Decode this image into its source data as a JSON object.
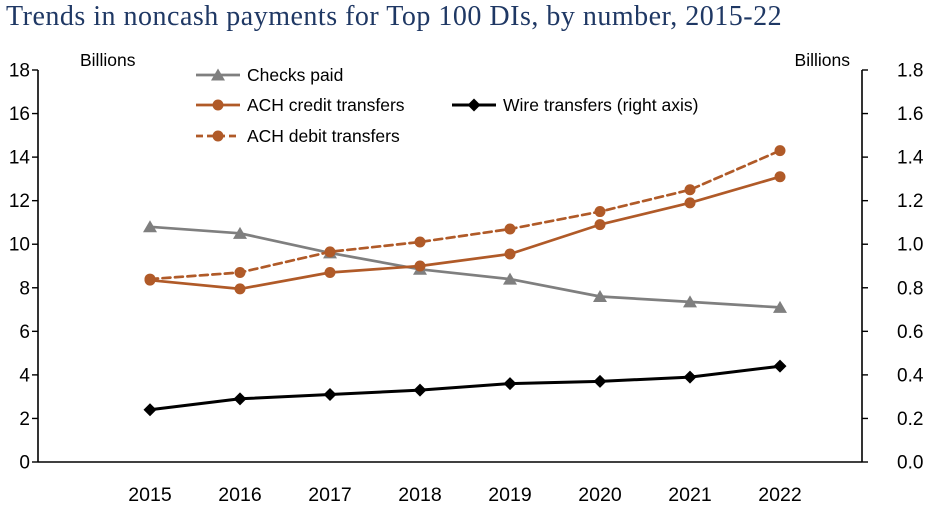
{
  "chart_data": {
    "type": "line",
    "title": "Trends in noncash payments for Top 100 DIs, by number, 2015-22",
    "title_color": "#1f3864",
    "x": [
      "2015",
      "2016",
      "2017",
      "2018",
      "2019",
      "2020",
      "2021",
      "2022"
    ],
    "left_axis": {
      "label": "Billions",
      "min": 0,
      "max": 18,
      "step": 2
    },
    "right_axis": {
      "label": "Billions",
      "min": 0,
      "max": 1.8,
      "step": 0.2
    },
    "grid": false,
    "legend_position": "top-left-inside",
    "series": [
      {
        "name": "Checks paid",
        "axis": "left",
        "color": "#7f7f7f",
        "marker": "triangle",
        "dash": false,
        "values": [
          10.8,
          10.5,
          9.6,
          8.85,
          8.4,
          7.6,
          7.35,
          7.1
        ]
      },
      {
        "name": "ACH credit transfers",
        "axis": "left",
        "color": "#b05a28",
        "marker": "circle",
        "dash": false,
        "values": [
          8.35,
          7.95,
          8.7,
          9.0,
          9.55,
          10.9,
          11.9,
          13.1
        ]
      },
      {
        "name": "ACH debit transfers",
        "axis": "left",
        "color": "#b05a28",
        "marker": "circle",
        "dash": true,
        "values": [
          8.4,
          8.7,
          9.65,
          10.1,
          10.7,
          11.5,
          12.5,
          14.3
        ]
      },
      {
        "name": "Wire transfers (right axis)",
        "axis": "right",
        "color": "#000000",
        "marker": "diamond",
        "dash": false,
        "values": [
          0.24,
          0.29,
          0.31,
          0.33,
          0.36,
          0.37,
          0.39,
          0.44
        ]
      }
    ]
  }
}
